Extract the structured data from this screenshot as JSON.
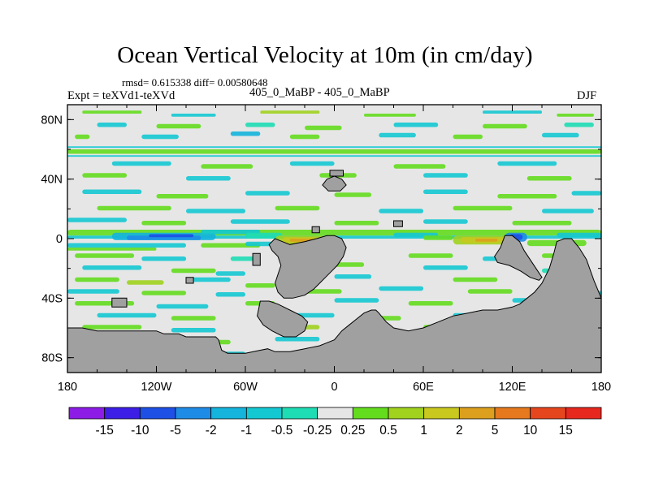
{
  "title": "Ocean Vertical Velocity at 10m (in cm/day)",
  "subtitle": {
    "rmsd": "rmsd= 0.615338 diff= 0.00580648",
    "expt": "Expt = teXVd1-teXVd",
    "case": "405_0_MaBP - 405_0_MaBP",
    "season": "DJF"
  },
  "chart_data": {
    "type": "heatmap",
    "title": "Ocean Vertical Velocity at 10m (in cm/day)",
    "xlabel": "",
    "ylabel": "",
    "x_ticks": [
      {
        "lon": -180,
        "label": "180"
      },
      {
        "lon": -120,
        "label": "120W"
      },
      {
        "lon": -60,
        "label": "60W"
      },
      {
        "lon": 0,
        "label": "0"
      },
      {
        "lon": 60,
        "label": "60E"
      },
      {
        "lon": 120,
        "label": "120E"
      },
      {
        "lon": 180,
        "label": "180"
      }
    ],
    "y_ticks": [
      {
        "lat": 80,
        "label": "80N"
      },
      {
        "lat": 40,
        "label": "40N"
      },
      {
        "lat": 0,
        "label": "0"
      },
      {
        "lat": -40,
        "label": "40S"
      },
      {
        "lat": -80,
        "label": "80S"
      }
    ],
    "xlim": [
      -180,
      180
    ],
    "ylim": [
      -90,
      90
    ],
    "colorbar": {
      "levels": [
        "-15",
        "-10",
        "-5",
        "-2",
        "-1",
        "-0.5",
        "-0.25",
        "0.25",
        "0.5",
        "1",
        "2",
        "5",
        "10",
        "15"
      ],
      "colors": [
        "#8c1ce6",
        "#3c1ee6",
        "#1e50e6",
        "#1e8ce6",
        "#14b4dc",
        "#14c8d2",
        "#1edcb4",
        "#e6e6e6",
        "#64dc1e",
        "#a0d21e",
        "#c8c81e",
        "#dca01e",
        "#e6781e",
        "#e6461e",
        "#e6281e"
      ]
    },
    "land_color": "#a0a0a0",
    "ocean_background": "#e6e6e6",
    "features": [
      {
        "lon_range": [
          -180,
          180
        ],
        "lat_range": [
          -8,
          8
        ],
        "class": "equatorial band, mixed up/downwelling"
      },
      {
        "lon_range": [
          -150,
          -90
        ],
        "lat_range": [
          -3,
          6
        ],
        "sign": "negative",
        "level": "-5 to -1"
      },
      {
        "lon_range": [
          -40,
          -10
        ],
        "lat_range": [
          -5,
          3
        ],
        "sign": "positive",
        "level": "2 to 5"
      },
      {
        "lon_range": [
          80,
          120
        ],
        "lat_range": [
          -5,
          3
        ],
        "sign": "positive",
        "level": "2 to 5"
      },
      {
        "lon_range": [
          115,
          130
        ],
        "lat_range": [
          -3,
          5
        ],
        "sign": "negative",
        "level": "-5 to -2"
      }
    ]
  }
}
